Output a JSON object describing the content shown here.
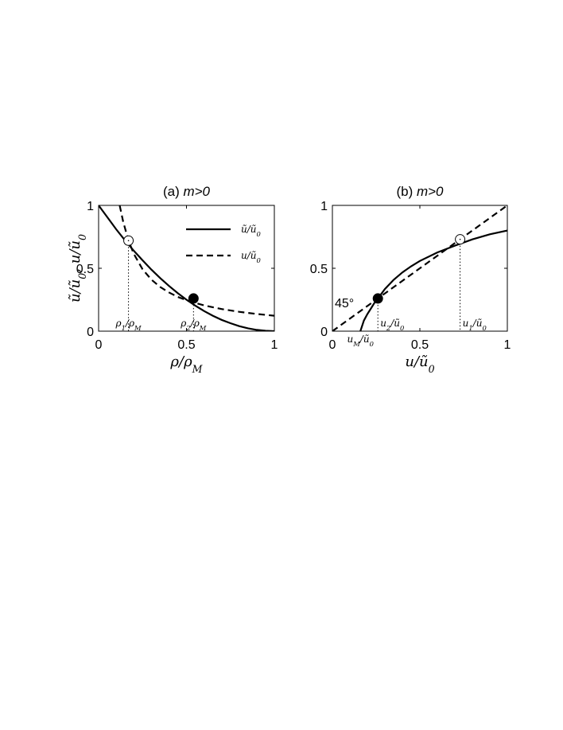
{
  "chart_data": [
    {
      "type": "line",
      "panel_label": "(a)",
      "title": "m>0",
      "xlabel": "ρ/ρ_M",
      "ylabel": "ũ/ũ_0,  u/ũ_0",
      "xlim": [
        0,
        1
      ],
      "ylim": [
        0,
        1
      ],
      "xticks": [
        "0",
        "0.5",
        "1"
      ],
      "yticks": [
        "0",
        "0.5",
        "1"
      ],
      "legend_position": "top-right",
      "series": [
        {
          "name": "ũ/ũ_0",
          "style": "solid",
          "x": [
            0,
            0.05,
            0.1,
            0.15,
            0.2,
            0.25,
            0.3,
            0.35,
            0.4,
            0.45,
            0.5,
            0.55,
            0.6,
            0.65,
            0.7,
            0.75,
            0.8,
            0.85,
            0.9,
            0.95,
            1
          ],
          "y": [
            1,
            0.905,
            0.81,
            0.722,
            0.64,
            0.563,
            0.49,
            0.423,
            0.36,
            0.303,
            0.25,
            0.203,
            0.16,
            0.123,
            0.09,
            0.063,
            0.04,
            0.023,
            0.01,
            0.003,
            0
          ]
        },
        {
          "name": "u/ũ_0",
          "style": "dashed",
          "x": [
            0.12,
            0.14,
            0.17,
            0.2,
            0.25,
            0.3,
            0.35,
            0.4,
            0.45,
            0.5,
            0.55,
            0.6,
            0.7,
            0.8,
            0.9,
            1
          ],
          "y": [
            1,
            0.87,
            0.72,
            0.615,
            0.492,
            0.41,
            0.352,
            0.308,
            0.273,
            0.246,
            0.224,
            0.205,
            0.176,
            0.154,
            0.137,
            0.123
          ]
        }
      ],
      "markers": [
        {
          "x": 0.17,
          "y": 0.72,
          "fill": "open",
          "label": "ρ_1/ρ_M"
        },
        {
          "x": 0.54,
          "y": 0.26,
          "fill": "filled",
          "label": "ρ_2/ρ_M"
        }
      ]
    },
    {
      "type": "line",
      "panel_label": "(b)",
      "title": "m>0",
      "xlabel": "u/ũ_0",
      "ylabel": "",
      "xlim": [
        0,
        1
      ],
      "ylim": [
        0,
        1
      ],
      "xticks": [
        "0",
        "0.5",
        "1"
      ],
      "yticks": [
        "0",
        "0.5",
        "1"
      ],
      "annotation": "45°",
      "series": [
        {
          "name": "",
          "style": "solid",
          "x": [
            0.16,
            0.18,
            0.2,
            0.22,
            0.24,
            0.26,
            0.3,
            0.35,
            0.4,
            0.45,
            0.5,
            0.6,
            0.7,
            0.8,
            0.9,
            1
          ],
          "y": [
            0,
            0.084,
            0.136,
            0.18,
            0.224,
            0.26,
            0.335,
            0.408,
            0.467,
            0.516,
            0.558,
            0.626,
            0.68,
            0.73,
            0.77,
            0.8
          ]
        },
        {
          "name": "",
          "style": "dashed",
          "x": [
            0,
            1
          ],
          "y": [
            0,
            1
          ]
        }
      ],
      "markers": [
        {
          "x": 0.26,
          "y": 0.26,
          "fill": "filled",
          "label": "u_2/ũ_0"
        },
        {
          "x": 0.73,
          "y": 0.73,
          "fill": "open",
          "label": "u_1/ũ_0"
        }
      ],
      "extra_label": "u_M/ũ_0",
      "extra_label_x": 0.16
    }
  ]
}
